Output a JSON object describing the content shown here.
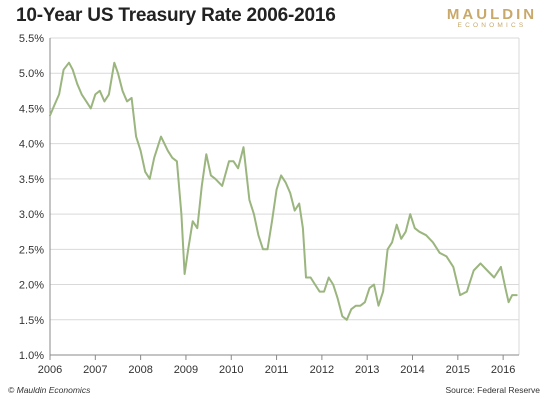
{
  "header": {
    "title": "10-Year US Treasury Rate 2006-2016",
    "logo_main": "MAULDIN",
    "logo_sub": "ECONOMICS"
  },
  "footer": {
    "copyright": "© Mauldin Economics",
    "source": "Source: Federal Reserve"
  },
  "colors": {
    "line": "#9bb57f",
    "grid": "#d9d9d9",
    "axis": "#888888",
    "logo": "#c9a96a"
  },
  "chart_data": {
    "type": "line",
    "title": "10-Year US Treasury Rate 2006-2016",
    "xlabel": "",
    "ylabel": "",
    "xlim": [
      2006.0,
      2016.35
    ],
    "ylim": [
      1.0,
      5.5
    ],
    "grid": true,
    "y_ticks": [
      1.0,
      1.5,
      2.0,
      2.5,
      3.0,
      3.5,
      4.0,
      4.5,
      5.0,
      5.5
    ],
    "y_tick_labels": [
      "1.0%",
      "1.5%",
      "2.0%",
      "2.5%",
      "3.0%",
      "3.5%",
      "4.0%",
      "4.5%",
      "5.0%",
      "5.5%"
    ],
    "x_ticks": [
      2006,
      2007,
      2008,
      2009,
      2010,
      2011,
      2012,
      2013,
      2014,
      2015,
      2016
    ],
    "x_tick_labels": [
      "2006",
      "2007",
      "2008",
      "2009",
      "2010",
      "2011",
      "2012",
      "2013",
      "2014",
      "2015",
      "2016"
    ],
    "series": [
      {
        "x": [
          2006.0,
          2006.1,
          2006.2,
          2006.3,
          2006.42,
          2006.5,
          2006.6,
          2006.7,
          2006.8,
          2006.9,
          2007.0,
          2007.1,
          2007.2,
          2007.3,
          2007.42,
          2007.5,
          2007.6,
          2007.7,
          2007.8,
          2007.9,
          2008.0,
          2008.1,
          2008.2,
          2008.3,
          2008.45,
          2008.6,
          2008.7,
          2008.8,
          2008.9,
          2008.97,
          2009.05,
          2009.15,
          2009.25,
          2009.35,
          2009.45,
          2009.55,
          2009.65,
          2009.8,
          2009.95,
          2010.05,
          2010.15,
          2010.27,
          2010.4,
          2010.5,
          2010.6,
          2010.7,
          2010.8,
          2010.9,
          2011.0,
          2011.1,
          2011.2,
          2011.3,
          2011.4,
          2011.5,
          2011.58,
          2011.65,
          2011.75,
          2011.85,
          2011.95,
          2012.05,
          2012.15,
          2012.25,
          2012.35,
          2012.45,
          2012.55,
          2012.65,
          2012.75,
          2012.85,
          2012.95,
          2013.05,
          2013.15,
          2013.25,
          2013.35,
          2013.45,
          2013.55,
          2013.65,
          2013.75,
          2013.85,
          2013.95,
          2014.05,
          2014.15,
          2014.3,
          2014.45,
          2014.6,
          2014.75,
          2014.9,
          2015.05,
          2015.2,
          2015.35,
          2015.5,
          2015.65,
          2015.8,
          2015.95,
          2016.05,
          2016.12,
          2016.2,
          2016.3
        ],
        "y": [
          4.4,
          4.55,
          4.7,
          5.05,
          5.15,
          5.05,
          4.85,
          4.7,
          4.6,
          4.5,
          4.7,
          4.75,
          4.6,
          4.7,
          5.15,
          5.0,
          4.75,
          4.6,
          4.65,
          4.1,
          3.9,
          3.6,
          3.5,
          3.8,
          4.1,
          3.9,
          3.8,
          3.75,
          3.0,
          2.15,
          2.5,
          2.9,
          2.8,
          3.4,
          3.85,
          3.55,
          3.5,
          3.4,
          3.75,
          3.75,
          3.65,
          3.95,
          3.2,
          3.0,
          2.7,
          2.5,
          2.5,
          2.9,
          3.35,
          3.55,
          3.45,
          3.3,
          3.05,
          3.15,
          2.8,
          2.1,
          2.1,
          2.0,
          1.9,
          1.9,
          2.1,
          2.0,
          1.8,
          1.55,
          1.5,
          1.65,
          1.7,
          1.7,
          1.75,
          1.95,
          2.0,
          1.7,
          1.9,
          2.5,
          2.6,
          2.85,
          2.65,
          2.75,
          3.0,
          2.8,
          2.75,
          2.7,
          2.6,
          2.45,
          2.4,
          2.25,
          1.85,
          1.9,
          2.2,
          2.3,
          2.2,
          2.1,
          2.25,
          1.95,
          1.75,
          1.85,
          1.85
        ]
      }
    ]
  }
}
